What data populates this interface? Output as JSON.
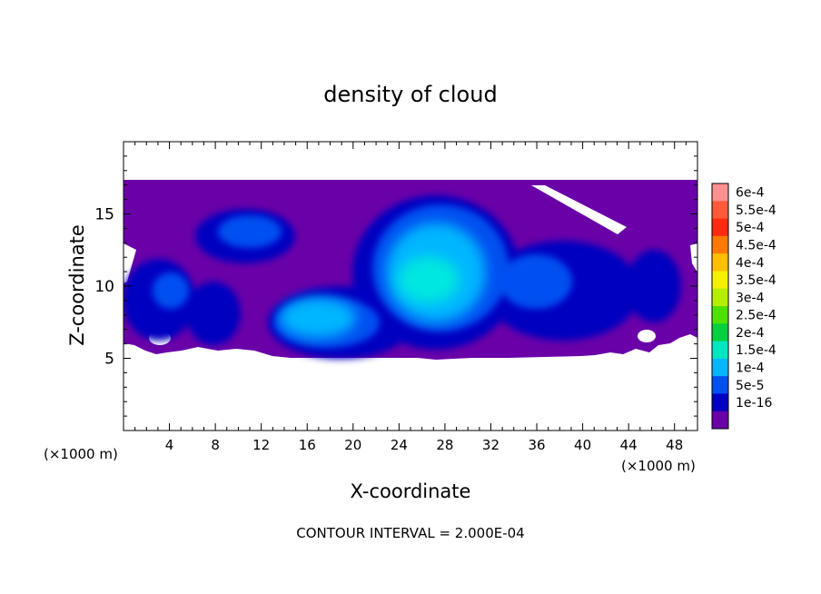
{
  "chart_data": {
    "type": "heatmap",
    "title": "density of cloud",
    "xlabel": "X-coordinate",
    "ylabel": "Z-coordinate",
    "x_unit_label": "(×1000 m)",
    "z_unit_label": "(×1000 m)",
    "xlim": [
      0,
      50
    ],
    "ylim": [
      0,
      20
    ],
    "x_ticks": [
      4,
      8,
      12,
      16,
      20,
      24,
      28,
      32,
      36,
      40,
      44,
      48
    ],
    "y_ticks": [
      5,
      10,
      15
    ],
    "grid": false,
    "footer": "CONTOUR INTERVAL = 2.000E-04",
    "colorbar": {
      "placement": "right",
      "labels": [
        "6e-4",
        "5.5e-4",
        "5e-4",
        "4.5e-4",
        "4e-4",
        "3.5e-4",
        "3e-4",
        "2.5e-4",
        "2e-4",
        "1.5e-4",
        "1e-4",
        "5e-5",
        "1e-16"
      ],
      "colors": [
        "#ff9090",
        "#ff5a3a",
        "#ff2a10",
        "#ff7a00",
        "#ffbe00",
        "#f5f000",
        "#b5ef00",
        "#50e000",
        "#00d040",
        "#00e6c0",
        "#00b6ff",
        "#0050f0",
        "#0000c0",
        "#6a00a8"
      ]
    },
    "field": {
      "cloud_layer_z": [
        5,
        17.3
      ],
      "cells": [
        {
          "x": 25.5,
          "z": 10.5,
          "level": "2e-4"
        },
        {
          "x": 16.5,
          "z": 7.5,
          "level": "1.5e-4"
        },
        {
          "x": 10.5,
          "z": 14.0,
          "level": "1e-4"
        },
        {
          "x": 36.5,
          "z": 9.5,
          "level": "1e-4"
        },
        {
          "x": 5.5,
          "z": 9.0,
          "level": "5e-5"
        }
      ]
    }
  }
}
